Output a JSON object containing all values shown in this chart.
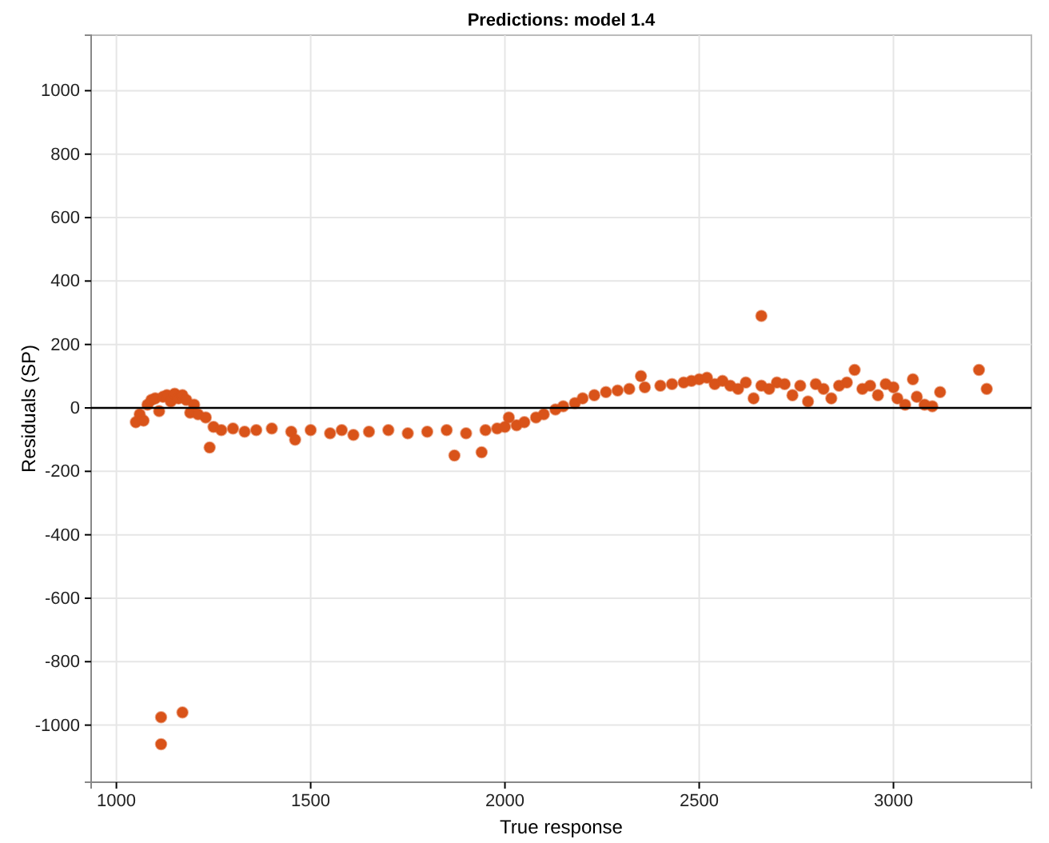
{
  "chart_data": {
    "type": "scatter",
    "title": "Predictions: model 1.4",
    "xlabel": "True response",
    "ylabel": "Residuals (SP)",
    "xlim": [
      935,
      3355
    ],
    "ylim": [
      -1180,
      1175
    ],
    "xticks": [
      1000,
      1500,
      2000,
      2500,
      3000
    ],
    "yticks": [
      -1000,
      -800,
      -600,
      -400,
      -200,
      0,
      200,
      400,
      600,
      800,
      1000
    ],
    "grid": true,
    "marker": "circle",
    "ref_lines": [
      {
        "axis": "y",
        "value": 0,
        "color": "#000000"
      }
    ],
    "series": [
      {
        "color": "#d95319",
        "x": [
          1050,
          1060,
          1070,
          1080,
          1090,
          1100,
          1110,
          1120,
          1130,
          1140,
          1150,
          1160,
          1170,
          1180,
          1190,
          1200,
          1210,
          1230,
          1250,
          1240,
          1270,
          1300,
          1330,
          1360,
          1400,
          1450,
          1460,
          1500,
          1550,
          1580,
          1610,
          1650,
          1700,
          1750,
          1800,
          1850,
          1870,
          1900,
          1940,
          1950,
          1980,
          2000,
          2010,
          2030,
          2050,
          2080,
          2100,
          2130,
          2150,
          2180,
          2200,
          2230,
          2260,
          2290,
          2320,
          2350,
          2360,
          2400,
          2430,
          2460,
          2480,
          2500,
          2520,
          2540,
          2560,
          2580,
          2600,
          2620,
          2640,
          2660,
          2660,
          2680,
          2700,
          2720,
          2740,
          2760,
          2780,
          2800,
          2820,
          2840,
          2860,
          2880,
          2900,
          2920,
          2940,
          2960,
          2980,
          3000,
          3010,
          3030,
          3050,
          3060,
          3080,
          3100,
          3120,
          3220,
          3240,
          1115,
          1115,
          1170
        ],
        "values": [
          -45,
          -20,
          -40,
          10,
          25,
          30,
          -10,
          35,
          40,
          20,
          45,
          30,
          40,
          25,
          -15,
          10,
          -20,
          -30,
          -60,
          -125,
          -70,
          -65,
          -75,
          -70,
          -65,
          -75,
          -100,
          -70,
          -80,
          -70,
          -85,
          -75,
          -70,
          -80,
          -75,
          -70,
          -150,
          -80,
          -140,
          -70,
          -65,
          -60,
          -30,
          -55,
          -45,
          -30,
          -20,
          -5,
          5,
          15,
          30,
          40,
          50,
          55,
          60,
          100,
          65,
          70,
          75,
          80,
          85,
          90,
          95,
          75,
          85,
          70,
          60,
          80,
          30,
          290,
          70,
          60,
          80,
          75,
          40,
          70,
          20,
          75,
          60,
          30,
          70,
          80,
          120,
          60,
          70,
          40,
          75,
          65,
          30,
          10,
          90,
          35,
          10,
          5,
          50,
          120,
          60,
          -975,
          -1060,
          -960
        ]
      }
    ]
  }
}
